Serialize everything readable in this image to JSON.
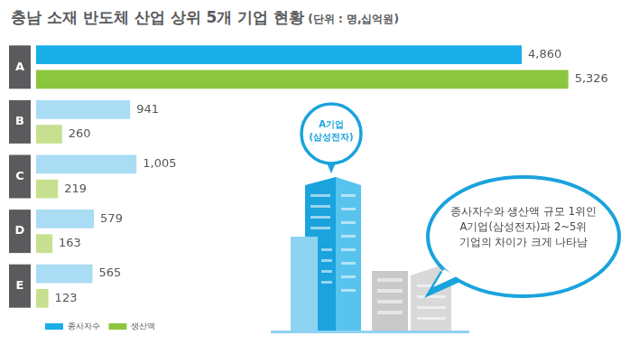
{
  "chart_data": {
    "type": "bar",
    "orientation": "horizontal",
    "title": "충남 소재 반도체 산업 상위 5개 기업 현황",
    "subtitle": "(단위 : 명,십억원)",
    "annotations": [
      "A기업 (삼성전자)",
      "종사자수와 생산액 규모 1위인 A기업(삼성전자)과 2~5위 기업의 차이가 크게 나타남"
    ],
    "categories": [
      "A",
      "B",
      "C",
      "D",
      "E"
    ],
    "series": [
      {
        "name": "종사자수",
        "color": "#19aee8",
        "colors": [
          "#19aee8",
          "#aadcf4",
          "#aadcf4",
          "#aadcf4",
          "#aadcf4"
        ],
        "values": [
          4860,
          941,
          1005,
          579,
          565
        ],
        "value_labels": [
          "4,860",
          "941",
          "1,005",
          "579",
          "565"
        ]
      },
      {
        "name": "생산액",
        "color": "#8cc63e",
        "colors": [
          "#8cc63e",
          "#c6e08f",
          "#c6e08f",
          "#c6e08f",
          "#c6e08f"
        ],
        "values": [
          5326,
          260,
          219,
          163,
          123
        ],
        "value_labels": [
          "5,326",
          "260",
          "219",
          "163",
          "123"
        ]
      }
    ],
    "xlim": [
      0,
      5600
    ],
    "grid": false,
    "legend": "lower left",
    "data_labels": true,
    "tick_labels": "y"
  }
}
